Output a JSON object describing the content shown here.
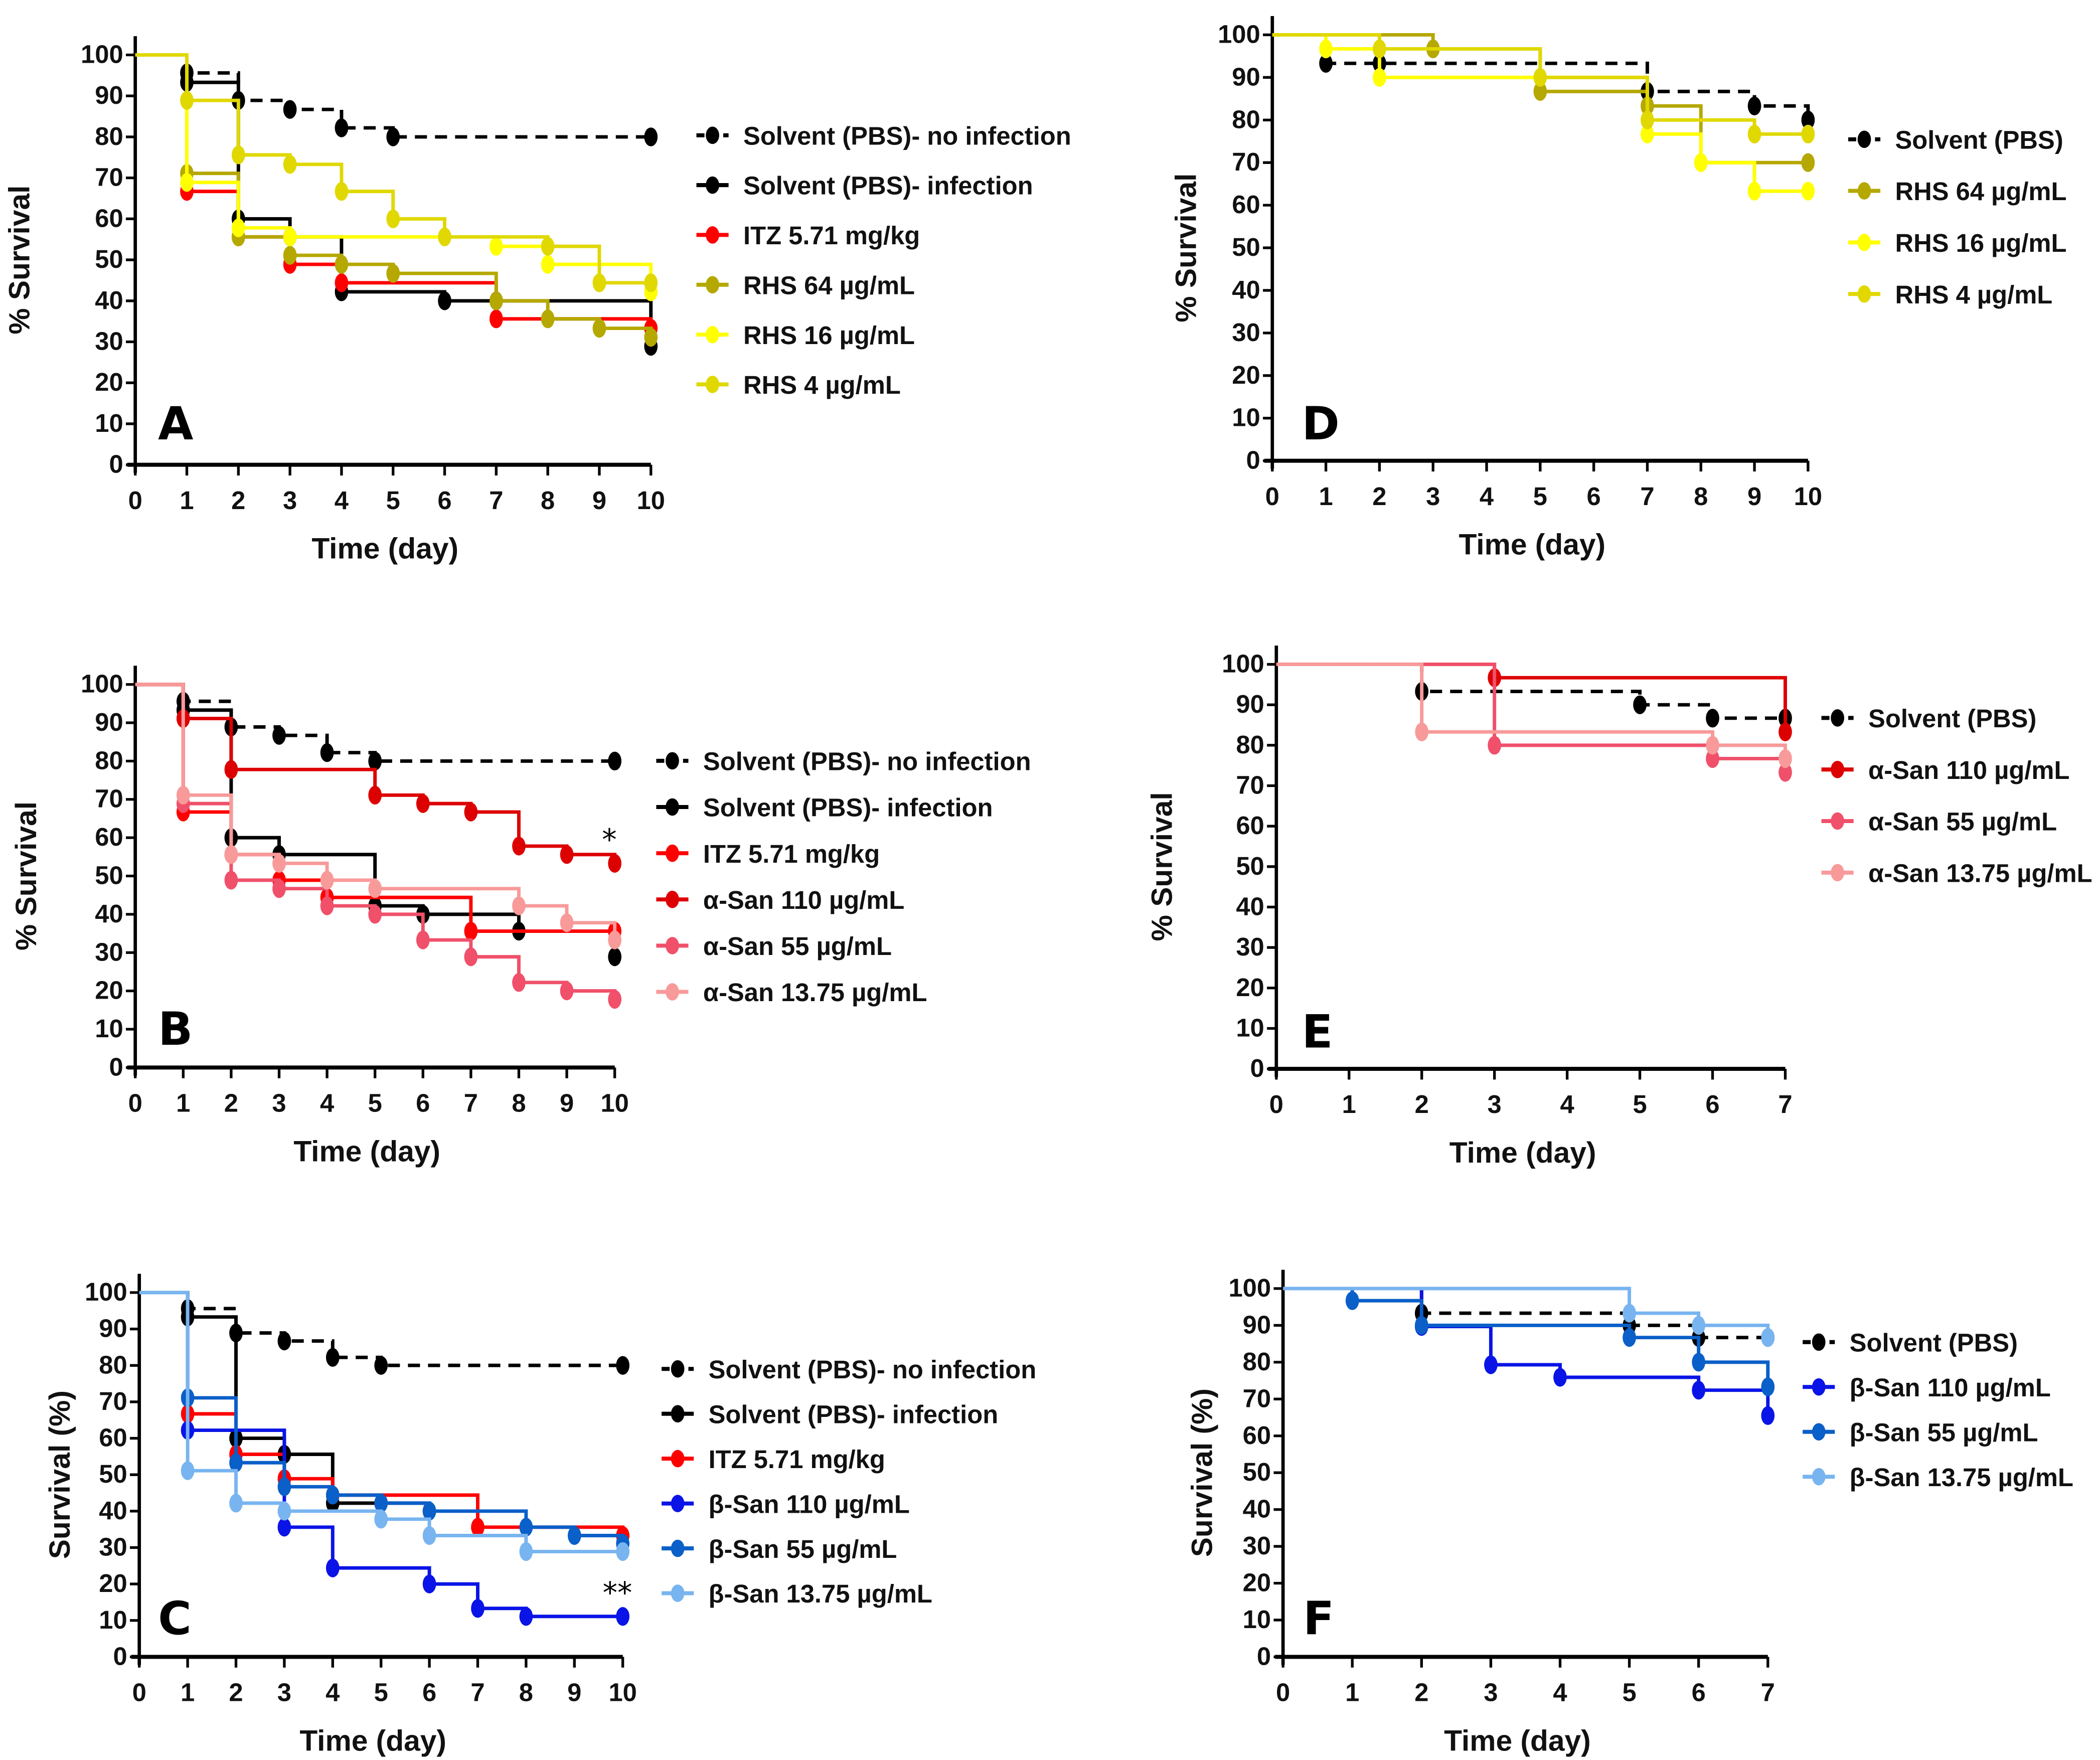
{
  "figure": {
    "description": "Kaplan-Meier survival curves, six panels A-F"
  },
  "chart_data": [
    {
      "panel": "A",
      "type": "line",
      "step": true,
      "xlabel": "Time (day)",
      "ylabel": "% Survival",
      "xlim": [
        0,
        10
      ],
      "ylim": [
        0,
        100
      ],
      "xticks": [
        "0",
        "1",
        "2",
        "3",
        "4",
        "5",
        "6",
        "7",
        "8",
        "9",
        "10"
      ],
      "yticks": [
        "0",
        "10",
        "20",
        "30",
        "40",
        "50",
        "60",
        "70",
        "80",
        "90",
        "100"
      ],
      "grid": false,
      "legend_position": "right",
      "annotation": "",
      "series": [
        {
          "name": "Solvent (PBS)- no infection",
          "color": "#000000",
          "dashed": true,
          "x": [
            0,
            1,
            2,
            3,
            4,
            5,
            10
          ],
          "y": [
            100,
            95.6,
            88.9,
            86.7,
            82.2,
            80,
            80
          ]
        },
        {
          "name": "Solvent (PBS)- infection",
          "color": "#000000",
          "dashed": false,
          "x": [
            0,
            1,
            2,
            3,
            4,
            6,
            7,
            10
          ],
          "y": [
            100,
            93.3,
            60,
            55.6,
            42.2,
            40,
            40,
            28.9
          ]
        },
        {
          "name": "ITZ 5.71 mg/kg",
          "color": "#ff0000",
          "dashed": false,
          "x": [
            0,
            1,
            2,
            3,
            4,
            7,
            10
          ],
          "y": [
            100,
            66.7,
            55.6,
            48.9,
            44.4,
            35.6,
            33.3
          ]
        },
        {
          "name": "RHS 64 µg/mL",
          "color": "#b5a800",
          "dashed": false,
          "x": [
            0,
            1,
            2,
            3,
            4,
            5,
            7,
            8,
            9,
            10
          ],
          "y": [
            100,
            71.1,
            55.6,
            51.1,
            48.9,
            46.7,
            40,
            35.6,
            33.3,
            31.1
          ]
        },
        {
          "name": "RHS 16 µg/mL",
          "color": "#ffff00",
          "dashed": false,
          "x": [
            0,
            1,
            2,
            3,
            7,
            8,
            10
          ],
          "y": [
            100,
            68.9,
            57.8,
            55.6,
            53.3,
            48.9,
            42.2
          ]
        },
        {
          "name": "RHS 4 µg/mL",
          "color": "#e0d800",
          "dashed": false,
          "x": [
            0,
            1,
            2,
            3,
            4,
            5,
            6,
            8,
            9,
            10
          ],
          "y": [
            100,
            88.9,
            75.6,
            73.3,
            66.7,
            60,
            55.6,
            53.3,
            44.4,
            44.4
          ]
        }
      ]
    },
    {
      "panel": "D",
      "type": "line",
      "step": true,
      "xlabel": "Time (day)",
      "ylabel": "% Survival",
      "xlim": [
        0,
        10
      ],
      "ylim": [
        0,
        100
      ],
      "xticks": [
        "0",
        "1",
        "2",
        "3",
        "4",
        "5",
        "6",
        "7",
        "8",
        "9",
        "10"
      ],
      "yticks": [
        "0",
        "10",
        "20",
        "30",
        "40",
        "50",
        "60",
        "70",
        "80",
        "90",
        "100"
      ],
      "grid": false,
      "legend_position": "right",
      "annotation": "",
      "series": [
        {
          "name": "Solvent (PBS)",
          "color": "#000000",
          "dashed": true,
          "x": [
            0,
            1,
            2,
            7,
            9,
            10
          ],
          "y": [
            100,
            93.3,
            93.3,
            86.7,
            83.3,
            80
          ]
        },
        {
          "name": "RHS 64 µg/mL",
          "color": "#b5a800",
          "dashed": false,
          "x": [
            0,
            3,
            5,
            7,
            8,
            10
          ],
          "y": [
            100,
            96.7,
            86.7,
            83.3,
            70,
            70
          ]
        },
        {
          "name": "RHS 16 µg/mL",
          "color": "#ffff00",
          "dashed": false,
          "x": [
            0,
            1,
            2,
            7,
            8,
            9,
            10
          ],
          "y": [
            100,
            96.7,
            90,
            76.7,
            70,
            63.3,
            63.3
          ]
        },
        {
          "name": "RHS 4 µg/mL",
          "color": "#e0d800",
          "dashed": false,
          "x": [
            0,
            2,
            5,
            7,
            9,
            10
          ],
          "y": [
            100,
            96.7,
            90,
            80,
            76.7,
            76.7
          ]
        }
      ]
    },
    {
      "panel": "B",
      "type": "line",
      "step": true,
      "xlabel": "Time (day)",
      "ylabel": "% Survival",
      "xlim": [
        0,
        10
      ],
      "ylim": [
        0,
        100
      ],
      "xticks": [
        "0",
        "1",
        "2",
        "3",
        "4",
        "5",
        "6",
        "7",
        "8",
        "9",
        "10"
      ],
      "yticks": [
        "0",
        "10",
        "20",
        "30",
        "40",
        "50",
        "60",
        "70",
        "80",
        "90",
        "100"
      ],
      "grid": false,
      "legend_position": "right",
      "annotation": "*",
      "annotation_series": "α-San 110 µg/mL",
      "series": [
        {
          "name": "Solvent (PBS)- no infection",
          "color": "#000000",
          "dashed": true,
          "x": [
            0,
            1,
            2,
            3,
            4,
            5,
            10
          ],
          "y": [
            100,
            95.6,
            88.9,
            86.7,
            82.2,
            80,
            80
          ]
        },
        {
          "name": "Solvent (PBS)- infection",
          "color": "#000000",
          "dashed": false,
          "x": [
            0,
            1,
            2,
            3,
            5,
            6,
            8,
            10
          ],
          "y": [
            100,
            93.3,
            60,
            55.6,
            42.2,
            40,
            35.6,
            28.9
          ]
        },
        {
          "name": "ITZ 5.71 mg/kg",
          "color": "#ff0000",
          "dashed": false,
          "x": [
            0,
            1,
            2,
            3,
            4,
            7,
            10
          ],
          "y": [
            100,
            66.7,
            55.6,
            48.9,
            44.4,
            35.6,
            35.6
          ]
        },
        {
          "name": "α-San 110 µg/mL",
          "color": "#dd0000",
          "dashed": false,
          "x": [
            0,
            1,
            2,
            5,
            6,
            7,
            8,
            9,
            10
          ],
          "y": [
            100,
            91.1,
            77.8,
            71.1,
            68.9,
            66.7,
            57.8,
            55.6,
            53.3
          ]
        },
        {
          "name": "α-San 55 µg/mL",
          "color": "#f0506a",
          "dashed": false,
          "x": [
            0,
            1,
            2,
            3,
            4,
            5,
            6,
            7,
            8,
            9,
            10
          ],
          "y": [
            100,
            68.9,
            48.9,
            46.7,
            42.2,
            40,
            33.3,
            28.9,
            22.2,
            20,
            17.8
          ]
        },
        {
          "name": "α-San 13.75 µg/mL",
          "color": "#f89a9a",
          "dashed": false,
          "x": [
            0,
            1,
            2,
            3,
            4,
            5,
            8,
            9,
            10
          ],
          "y": [
            100,
            71.1,
            55.6,
            53.3,
            48.9,
            46.7,
            42.2,
            37.8,
            33.3
          ]
        }
      ]
    },
    {
      "panel": "E",
      "type": "line",
      "step": true,
      "xlabel": "Time (day)",
      "ylabel": "% Survival",
      "xlim": [
        0,
        7
      ],
      "ylim": [
        0,
        100
      ],
      "xticks": [
        "0",
        "1",
        "2",
        "3",
        "4",
        "5",
        "6",
        "7"
      ],
      "yticks": [
        "0",
        "10",
        "20",
        "30",
        "40",
        "50",
        "60",
        "70",
        "80",
        "90",
        "100"
      ],
      "grid": false,
      "legend_position": "right",
      "annotation": "",
      "series": [
        {
          "name": "Solvent (PBS)",
          "color": "#000000",
          "dashed": true,
          "x": [
            0,
            2,
            5,
            6,
            7
          ],
          "y": [
            100,
            93.3,
            90,
            86.7,
            86.7
          ]
        },
        {
          "name": "α-San 110 µg/mL",
          "color": "#dd0000",
          "dashed": false,
          "x": [
            0,
            3,
            7
          ],
          "y": [
            100,
            96.7,
            83.3
          ]
        },
        {
          "name": "α-San 55 µg/mL",
          "color": "#f0506a",
          "dashed": false,
          "x": [
            0,
            3,
            6,
            7
          ],
          "y": [
            100,
            80,
            76.7,
            73.3
          ]
        },
        {
          "name": "α-San 13.75 µg/mL",
          "color": "#f89a9a",
          "dashed": false,
          "x": [
            0,
            2,
            6,
            7
          ],
          "y": [
            100,
            83.3,
            80,
            76.7
          ]
        }
      ]
    },
    {
      "panel": "C",
      "type": "line",
      "step": true,
      "xlabel": "Time (day)",
      "ylabel": "Survival (%)",
      "xlim": [
        0,
        10
      ],
      "ylim": [
        0,
        100
      ],
      "xticks": [
        "0",
        "1",
        "2",
        "3",
        "4",
        "5",
        "6",
        "7",
        "8",
        "9",
        "10"
      ],
      "yticks": [
        "0",
        "10",
        "20",
        "30",
        "40",
        "50",
        "60",
        "70",
        "80",
        "90",
        "100"
      ],
      "grid": false,
      "legend_position": "right",
      "annotation": "**",
      "annotation_series": "β-San 110 µg/mL",
      "series": [
        {
          "name": "Solvent (PBS)- no infection",
          "color": "#000000",
          "dashed": true,
          "x": [
            0,
            1,
            2,
            3,
            4,
            5,
            10
          ],
          "y": [
            100,
            95.6,
            88.9,
            86.7,
            82.2,
            80,
            80
          ]
        },
        {
          "name": "Solvent (PBS)- infection",
          "color": "#000000",
          "dashed": false,
          "x": [
            0,
            1,
            2,
            3,
            4,
            5,
            6
          ],
          "y": [
            100,
            93.3,
            60,
            55.6,
            42.2,
            42.2,
            40
          ]
        },
        {
          "name": "ITZ 5.71 mg/kg",
          "color": "#ff0000",
          "dashed": false,
          "x": [
            0,
            1,
            2,
            3,
            4,
            7,
            10
          ],
          "y": [
            100,
            66.7,
            55.6,
            48.9,
            44.4,
            35.6,
            33.3
          ]
        },
        {
          "name": "β-San 110 µg/mL",
          "color": "#0a14e6",
          "dashed": false,
          "x": [
            0,
            1,
            3,
            4,
            6,
            7,
            8,
            10
          ],
          "y": [
            100,
            62.2,
            35.6,
            24.4,
            20,
            13.3,
            11.1,
            11.1
          ]
        },
        {
          "name": "β-San 55 µg/mL",
          "color": "#0a5fc8",
          "dashed": false,
          "x": [
            0,
            1,
            2,
            3,
            4,
            5,
            6,
            8,
            9,
            10
          ],
          "y": [
            100,
            71.1,
            53.3,
            46.7,
            44.4,
            42.2,
            40,
            35.6,
            33.3,
            31.1
          ]
        },
        {
          "name": "β-San 13.75 µg/mL",
          "color": "#78b4f0",
          "dashed": false,
          "x": [
            0,
            1,
            2,
            3,
            5,
            6,
            8,
            10
          ],
          "y": [
            100,
            51.1,
            42.2,
            40,
            37.8,
            33.3,
            28.9,
            28.9
          ]
        }
      ]
    },
    {
      "panel": "F",
      "type": "line",
      "step": true,
      "xlabel": "Time (day)",
      "ylabel": "Survival (%)",
      "xlim": [
        0,
        7
      ],
      "ylim": [
        0,
        100
      ],
      "xticks": [
        "0",
        "1",
        "2",
        "3",
        "4",
        "5",
        "6",
        "7"
      ],
      "yticks": [
        "0",
        "10",
        "20",
        "30",
        "40",
        "50",
        "60",
        "70",
        "80",
        "90",
        "100"
      ],
      "grid": false,
      "legend_position": "right",
      "annotation": "",
      "series": [
        {
          "name": "Solvent (PBS)",
          "color": "#000000",
          "dashed": true,
          "x": [
            0,
            2,
            5,
            6,
            7
          ],
          "y": [
            100,
            93.3,
            90,
            86.7,
            86.7
          ]
        },
        {
          "name": "β-San 110 µg/mL",
          "color": "#0a14e6",
          "dashed": false,
          "x": [
            0,
            2,
            3,
            4,
            6,
            7
          ],
          "y": [
            100,
            89.7,
            79.3,
            75.9,
            72.4,
            65.5
          ]
        },
        {
          "name": "β-San 55 µg/mL",
          "color": "#0a5fc8",
          "dashed": false,
          "x": [
            0,
            1,
            2,
            5,
            6,
            7
          ],
          "y": [
            100,
            96.7,
            90,
            86.7,
            80,
            73.3
          ]
        },
        {
          "name": "β-San 13.75 µg/mL",
          "color": "#78b4f0",
          "dashed": false,
          "x": [
            0,
            5,
            6,
            7
          ],
          "y": [
            100,
            93.3,
            90,
            86.7
          ]
        }
      ]
    }
  ]
}
